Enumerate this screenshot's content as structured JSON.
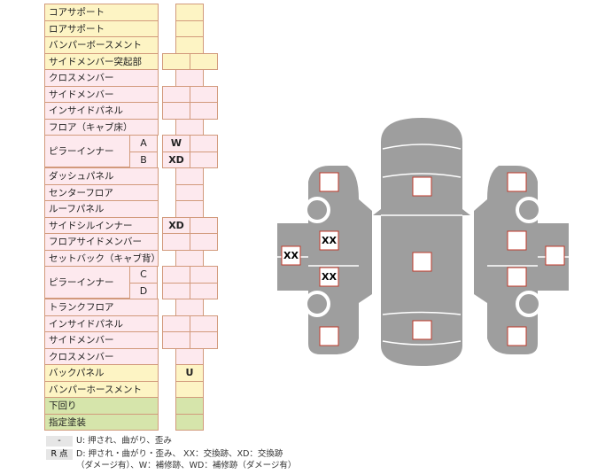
{
  "table": {
    "rows": [
      {
        "label": "コアサポート"
      },
      {
        "label": "ロアサポート"
      },
      {
        "label": "バンパーボースメント"
      },
      {
        "label": "サイドメンバー突起部"
      },
      {
        "label": "クロスメンバー"
      },
      {
        "label": "サイドメンバー"
      },
      {
        "label": "インサイドパネル"
      },
      {
        "label": "フロア（キャブ床）"
      },
      {
        "label": "ピラーインナー",
        "parts": [
          {
            "name": "A",
            "mark": "W"
          },
          {
            "name": "B",
            "mark": "XD"
          }
        ]
      },
      {
        "label": "ダッシュパネル"
      },
      {
        "label": "センターフロア"
      },
      {
        "label": "ルーフパネル"
      },
      {
        "label": "サイドシルインナー",
        "mark": "XD"
      },
      {
        "label": "フロアサイドメンバー"
      },
      {
        "label": "セットバック（キャブ背）"
      },
      {
        "label": "ピラーインナー",
        "parts": [
          {
            "name": "C"
          },
          {
            "name": "D"
          }
        ]
      },
      {
        "label": "トランクフロア"
      },
      {
        "label": "インサイドパネル"
      },
      {
        "label": "サイドメンバー"
      },
      {
        "label": "クロスメンバー"
      },
      {
        "label": "バックパネル",
        "mark": "U"
      },
      {
        "label": "バンパーホースメント"
      },
      {
        "label": "下回り"
      },
      {
        "label": "指定塗装"
      }
    ]
  },
  "legend": [
    {
      "key": "-",
      "lines": [
        "U: 押され、曲がり、歪み"
      ]
    },
    {
      "key": "R 点",
      "lines": [
        "D: 押され・曲がり・歪み、 XX：交換跡、XD：交換跡",
        "（ダメージ有）、W：補修跡、WD：補修跡（ダメージ有）"
      ]
    }
  ],
  "diagram": {
    "marks": [
      "XX",
      "XX",
      "XX"
    ]
  }
}
